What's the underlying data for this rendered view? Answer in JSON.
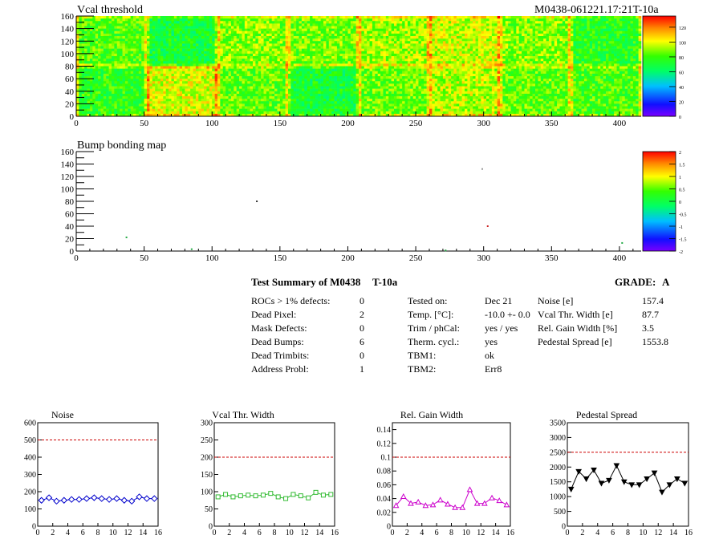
{
  "vcal_map": {
    "title": "Vcal threshold",
    "module_id": "M0438-061221.17:21T-10a",
    "x_ticks": [
      "0",
      "50",
      "100",
      "150",
      "200",
      "250",
      "300",
      "350",
      "400"
    ],
    "y_ticks": [
      "0",
      "20",
      "40",
      "60",
      "80",
      "100",
      "120",
      "140",
      "160"
    ],
    "xlim": [
      0,
      416
    ],
    "ylim": [
      0,
      160
    ],
    "colorbar_ticks": [
      "0",
      "20",
      "40",
      "60",
      "80",
      "100",
      "120"
    ],
    "colorbar_range": [
      0,
      135
    ]
  },
  "bump_map": {
    "title": "Bump bonding map",
    "x_ticks": [
      "0",
      "50",
      "100",
      "150",
      "200",
      "250",
      "300",
      "350",
      "400"
    ],
    "y_ticks": [
      "0",
      "20",
      "40",
      "60",
      "80",
      "100",
      "120",
      "140",
      "160"
    ],
    "xlim": [
      0,
      416
    ],
    "ylim": [
      0,
      160
    ],
    "colorbar_ticks": [
      "-2",
      "-1.5",
      "-1",
      "-0.5",
      "0",
      "0.5",
      "1",
      "1.5",
      "2"
    ],
    "colorbar_range": [
      -2,
      2
    ],
    "defects": [
      {
        "x": 37,
        "y": 22,
        "color": "#22aa44"
      },
      {
        "x": 85,
        "y": 3,
        "color": "#22aa44"
      },
      {
        "x": 133,
        "y": 80,
        "color": "#333333"
      },
      {
        "x": 272,
        "y": 1,
        "color": "#22aa44"
      },
      {
        "x": 299,
        "y": 132,
        "color": "#999999"
      },
      {
        "x": 303,
        "y": 40,
        "color": "#cc2222"
      },
      {
        "x": 402,
        "y": 13,
        "color": "#22aa44"
      }
    ]
  },
  "summary": {
    "heading": "Test Summary of M0438",
    "temp_tag": "T-10a",
    "grade_label": "GRADE:",
    "grade": "A",
    "left": [
      {
        "label": "ROCs > 1% defects:",
        "value": "0"
      },
      {
        "label": "Dead Pixel:",
        "value": "2"
      },
      {
        "label": "Mask Defects:",
        "value": "0"
      },
      {
        "label": "Dead Bumps:",
        "value": "6"
      },
      {
        "label": "Dead Trimbits:",
        "value": "0"
      },
      {
        "label": "Address Probl:",
        "value": "1"
      }
    ],
    "middle": [
      {
        "label": "Tested on:",
        "value": "Dec 21"
      },
      {
        "label": "Temp. [°C]:",
        "value": "-10.0 +- 0.0"
      },
      {
        "label": "Trim / phCal:",
        "value": "yes / yes"
      },
      {
        "label": "Therm. cycl.:",
        "value": "yes"
      },
      {
        "label": "TBM1:",
        "value": "ok"
      },
      {
        "label": "TBM2:",
        "value": "Err8"
      }
    ],
    "right": [
      {
        "label": "Noise [e]",
        "value": "157.4"
      },
      {
        "label": "Vcal Thr. Width [e]",
        "value": "87.7"
      },
      {
        "label": "Rel. Gain Width [%]",
        "value": "3.5"
      },
      {
        "label": "Pedestal Spread [e]",
        "value": "1553.8"
      }
    ]
  },
  "chart_data": [
    {
      "type": "line",
      "title": "Noise",
      "x": [
        0.5,
        1.5,
        2.5,
        3.5,
        4.5,
        5.5,
        6.5,
        7.5,
        8.5,
        9.5,
        10.5,
        11.5,
        12.5,
        13.5,
        14.5,
        15.5
      ],
      "values": [
        150,
        165,
        145,
        150,
        155,
        155,
        160,
        165,
        160,
        155,
        160,
        150,
        145,
        170,
        160,
        160
      ],
      "xlim": [
        0,
        16
      ],
      "ylim": [
        0,
        600
      ],
      "x_ticks": [
        "0",
        "2",
        "4",
        "6",
        "8",
        "10",
        "12",
        "14",
        "16"
      ],
      "y_ticks": [
        "0",
        "100",
        "200",
        "300",
        "400",
        "500",
        "600"
      ],
      "threshold": 500,
      "color": "#0000cc",
      "marker": "diamond"
    },
    {
      "type": "line",
      "title": "Vcal Thr. Width",
      "x": [
        0.5,
        1.5,
        2.5,
        3.5,
        4.5,
        5.5,
        6.5,
        7.5,
        8.5,
        9.5,
        10.5,
        11.5,
        12.5,
        13.5,
        14.5,
        15.5
      ],
      "values": [
        85,
        92,
        85,
        88,
        90,
        88,
        90,
        95,
        85,
        80,
        92,
        88,
        82,
        98,
        90,
        92
      ],
      "xlim": [
        0,
        16
      ],
      "ylim": [
        0,
        300
      ],
      "x_ticks": [
        "0",
        "2",
        "4",
        "6",
        "8",
        "10",
        "12",
        "14",
        "16"
      ],
      "y_ticks": [
        "0",
        "50",
        "100",
        "150",
        "200",
        "250",
        "300"
      ],
      "threshold": 200,
      "color": "#33bb33",
      "marker": "square"
    },
    {
      "type": "line",
      "title": "Rel. Gain Width",
      "x": [
        0.5,
        1.5,
        2.5,
        3.5,
        4.5,
        5.5,
        6.5,
        7.5,
        8.5,
        9.5,
        10.5,
        11.5,
        12.5,
        13.5,
        14.5,
        15.5
      ],
      "values": [
        0.03,
        0.043,
        0.033,
        0.035,
        0.03,
        0.031,
        0.038,
        0.032,
        0.027,
        0.027,
        0.053,
        0.033,
        0.033,
        0.041,
        0.037,
        0.031
      ],
      "xlim": [
        0,
        16
      ],
      "ylim": [
        0,
        0.15
      ],
      "x_ticks": [
        "0",
        "2",
        "4",
        "6",
        "8",
        "10",
        "12",
        "14",
        "16"
      ],
      "y_ticks": [
        "0",
        "0.02",
        "0.04",
        "0.06",
        "0.08",
        "0.1",
        "0.12",
        "0.14"
      ],
      "threshold": 0.1,
      "color": "#cc00cc",
      "marker": "triangle"
    },
    {
      "type": "line",
      "title": "Pedestal Spread",
      "x": [
        0.5,
        1.5,
        2.5,
        3.5,
        4.5,
        5.5,
        6.5,
        7.5,
        8.5,
        9.5,
        10.5,
        11.5,
        12.5,
        13.5,
        14.5,
        15.5
      ],
      "values": [
        1250,
        1850,
        1600,
        1900,
        1450,
        1550,
        2050,
        1500,
        1400,
        1400,
        1600,
        1800,
        1150,
        1400,
        1600,
        1450
      ],
      "xlim": [
        0,
        16
      ],
      "ylim": [
        0,
        3500
      ],
      "x_ticks": [
        "0",
        "2",
        "4",
        "6",
        "8",
        "10",
        "12",
        "14",
        "16"
      ],
      "y_ticks": [
        "0",
        "500",
        "1000",
        "1500",
        "2000",
        "2500",
        "3000",
        "3500"
      ],
      "threshold": 2500,
      "color": "#000000",
      "marker": "triangle-down"
    }
  ]
}
